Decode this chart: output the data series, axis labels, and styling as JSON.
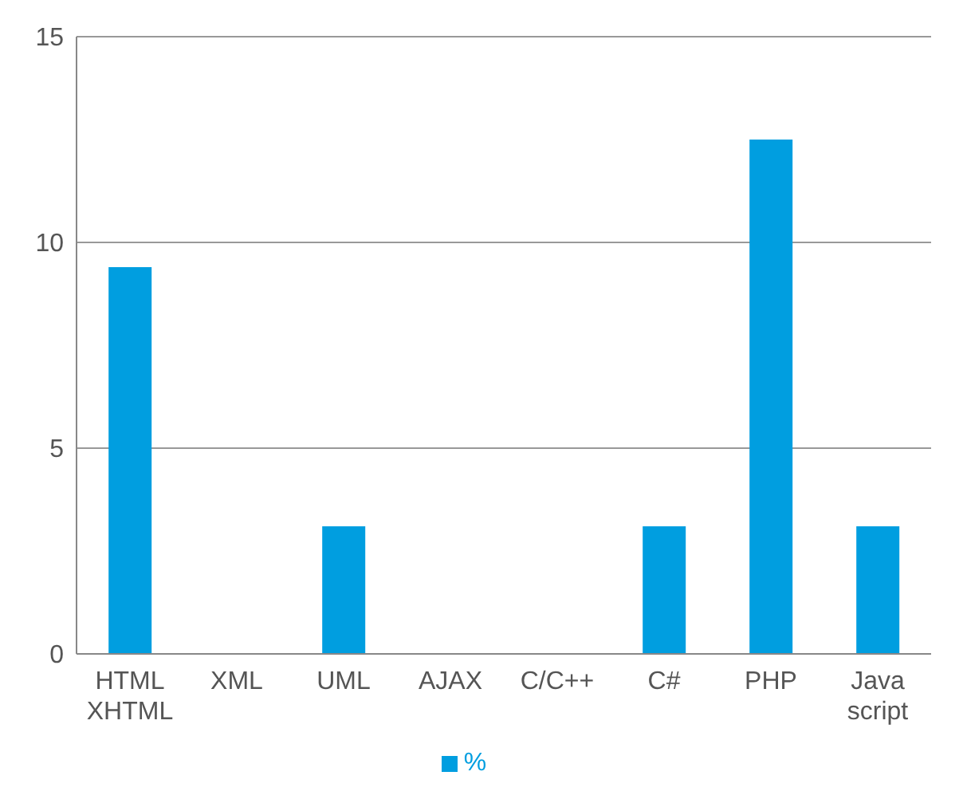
{
  "chart_data": {
    "type": "bar",
    "categories": [
      "HTML\nXHTML",
      "XML",
      "UML",
      "AJAX",
      "C/C++",
      "C#",
      "PHP",
      "Java\nscript"
    ],
    "series": [
      {
        "name": "%",
        "color": "#009ee0",
        "values": [
          9.4,
          0,
          3.1,
          0,
          0,
          3.1,
          12.5,
          3.1
        ]
      }
    ],
    "ylim": [
      0,
      15
    ],
    "yticks": [
      0,
      5,
      10,
      15
    ],
    "grid": "y",
    "legend": "bottom"
  }
}
